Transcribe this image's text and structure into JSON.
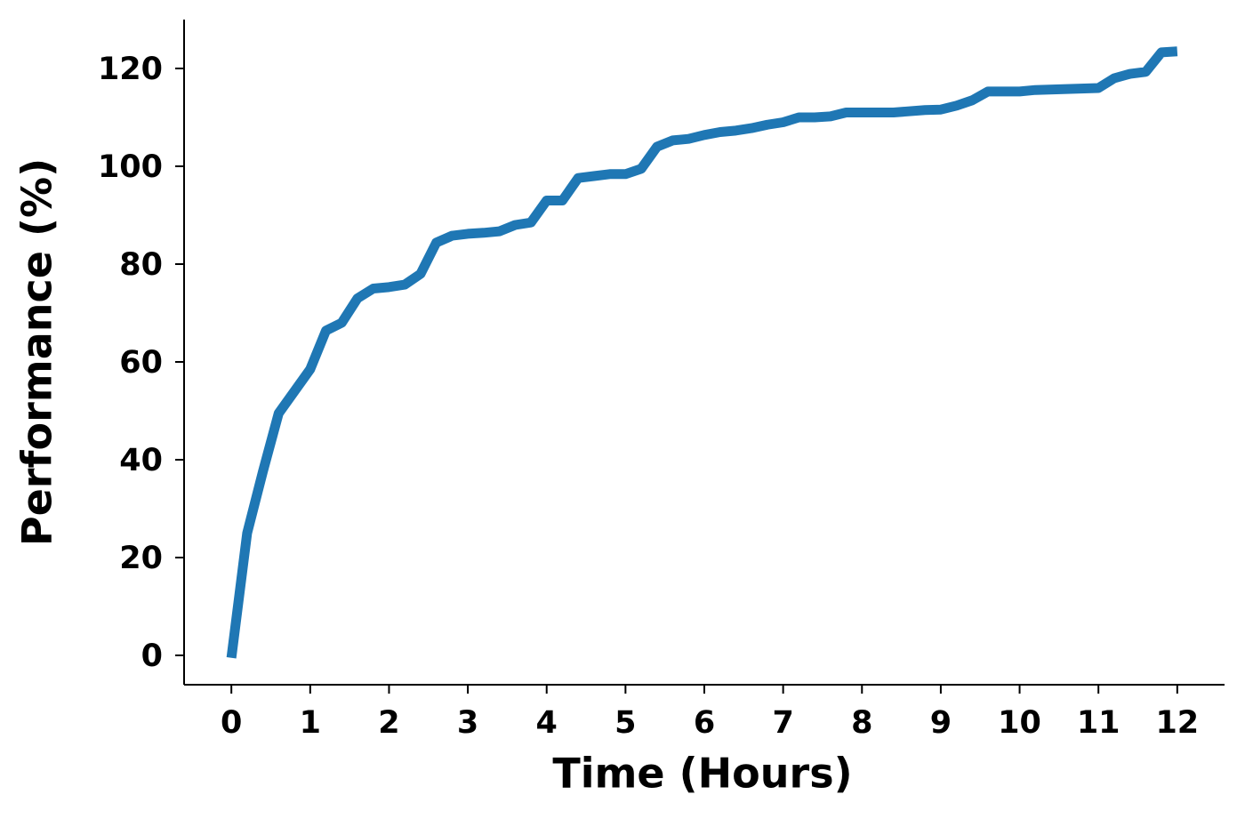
{
  "chart_data": {
    "type": "line",
    "x_label": "Time (Hours)",
    "y_label": "Performance (%)",
    "x": [
      0,
      0.2,
      0.4,
      0.6,
      0.8,
      1.0,
      1.2,
      1.4,
      1.6,
      1.8,
      2.0,
      2.2,
      2.4,
      2.6,
      2.8,
      3.0,
      3.2,
      3.4,
      3.6,
      3.8,
      4.0,
      4.2,
      4.4,
      4.6,
      4.8,
      5.0,
      5.2,
      5.4,
      5.6,
      5.8,
      6.0,
      6.2,
      6.4,
      6.6,
      6.8,
      7.0,
      7.2,
      7.4,
      7.6,
      7.8,
      8.0,
      8.4,
      8.8,
      9.0,
      9.2,
      9.4,
      9.6,
      9.8,
      10.0,
      10.2,
      10.6,
      11.0,
      11.2,
      11.4,
      11.6,
      11.8,
      12.0
    ],
    "values": [
      -0.5,
      25,
      37.6,
      49.5,
      54,
      58.5,
      66.4,
      68,
      73,
      75,
      75.3,
      75.8,
      78,
      84.4,
      85.8,
      86.2,
      86.4,
      86.7,
      88,
      88.5,
      93,
      93,
      97.6,
      98,
      98.4,
      98.4,
      99.5,
      104,
      105.3,
      105.6,
      106.4,
      107,
      107.3,
      107.8,
      108.5,
      109,
      110,
      110,
      110.2,
      111,
      111,
      111,
      111.5,
      111.6,
      112.4,
      113.5,
      115.3,
      115.3,
      115.3,
      115.6,
      115.8,
      116,
      118,
      118.9,
      119.3,
      123.3,
      123.5
    ],
    "color": "#1f77b4",
    "xlim": [
      -0.6,
      12.6
    ],
    "ylim": [
      -6,
      130
    ],
    "xticks": [
      0,
      1,
      2,
      3,
      4,
      5,
      6,
      7,
      8,
      9,
      10,
      11,
      12
    ],
    "yticks": [
      0,
      20,
      40,
      60,
      80,
      100,
      120
    ],
    "grid": false
  }
}
